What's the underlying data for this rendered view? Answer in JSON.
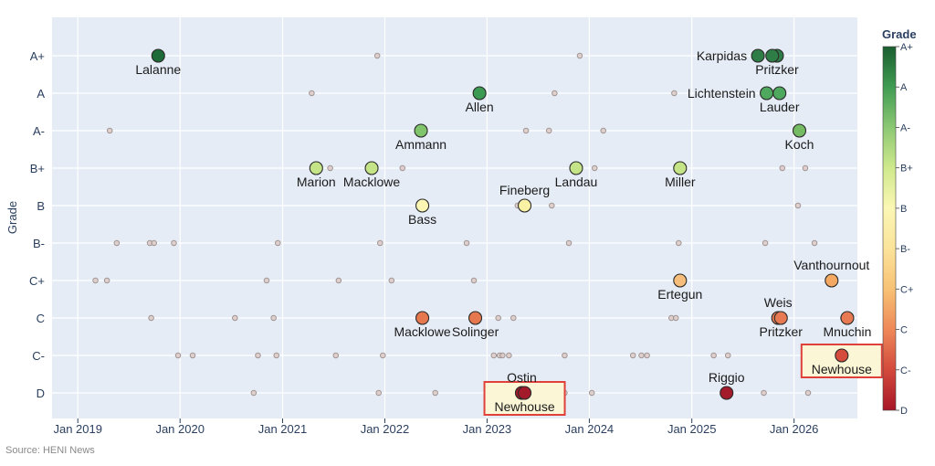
{
  "chart_data": {
    "type": "scatter",
    "source": "Source: HENI News",
    "ylabel": "Grade",
    "xlabel": "",
    "grades": [
      "D",
      "C-",
      "C",
      "C+",
      "B-",
      "B",
      "B+",
      "A-",
      "A",
      "A+"
    ],
    "x_ticks": [
      "Jan 2019",
      "Jan 2020",
      "Jan 2021",
      "Jan 2022",
      "Jan 2023",
      "Jan 2024",
      "Jan 2025",
      "Jan 2026"
    ],
    "x_tick_dates": [
      "2019-01-01",
      "2020-01-01",
      "2021-01-01",
      "2022-01-01",
      "2023-01-01",
      "2024-01-01",
      "2025-01-01",
      "2026-01-01"
    ],
    "xlim": [
      "2018-10-01",
      "2026-08-15"
    ],
    "grid": true,
    "colorbar": {
      "title": "Grade",
      "labels": [
        "A+",
        "A",
        "A-",
        "B+",
        "B",
        "B-",
        "C+",
        "C",
        "C-",
        "D"
      ],
      "colors": [
        "#1a5e30",
        "#3f9c52",
        "#8cc873",
        "#cfe98c",
        "#fbf7b4",
        "#fbe39a",
        "#f8c275",
        "#ee8858",
        "#d34a3c",
        "#a71626"
      ],
      "position": "right"
    },
    "highlighted": [
      {
        "label": "Lalanne",
        "date": "2019-10-15",
        "grade": "A+",
        "color": "#1d6b38",
        "label_pos": "below"
      },
      {
        "label": "Allen",
        "date": "2022-12-05",
        "grade": "A",
        "color": "#3c9a52",
        "label_pos": "below"
      },
      {
        "label": "Ammann",
        "date": "2022-05-10",
        "grade": "A-",
        "color": "#80c46c",
        "label_pos": "below"
      },
      {
        "label": "Marion",
        "date": "2021-05-01",
        "grade": "B+",
        "color": "#c4e487",
        "label_pos": "below"
      },
      {
        "label": "Macklowe",
        "date": "2021-11-15",
        "grade": "B+",
        "color": "#c4e487",
        "label_pos": "below"
      },
      {
        "label": "Bass",
        "date": "2022-05-15",
        "grade": "B",
        "color": "#fbf6b3",
        "label_pos": "below"
      },
      {
        "label": "Fineberg",
        "date": "2023-05-15",
        "grade": "B",
        "color": "#f9f2a4",
        "label_pos": "above"
      },
      {
        "label": "Landau",
        "date": "2023-11-15",
        "grade": "B+",
        "color": "#c4e487",
        "label_pos": "below"
      },
      {
        "label": "Miller",
        "date": "2024-11-20",
        "grade": "B+",
        "color": "#c4e487",
        "label_pos": "below"
      },
      {
        "label": "Macklowe",
        "date": "2022-05-15",
        "grade": "C",
        "color": "#e6784f",
        "label_pos": "below"
      },
      {
        "label": "Solinger",
        "date": "2022-11-20",
        "grade": "C",
        "color": "#e6784f",
        "label_pos": "below"
      },
      {
        "label": "Ostin",
        "date": "2023-05-05",
        "grade": "D",
        "color": "#a31a2a",
        "label_pos": "above"
      },
      {
        "label": "Newhouse",
        "date": "2023-05-15",
        "grade": "D",
        "color": "#a31a2a",
        "label_pos": "below",
        "boxed": true
      },
      {
        "label": "Ertegun",
        "date": "2024-11-20",
        "grade": "C+",
        "color": "#f7be7b",
        "label_pos": "below"
      },
      {
        "label": "Riggio",
        "date": "2025-05-05",
        "grade": "D",
        "color": "#a31a2a",
        "label_pos": "above"
      },
      {
        "label": "Karpidas",
        "date": "2025-08-25",
        "grade": "A+",
        "color": "#2f7d46",
        "label_pos": "left"
      },
      {
        "label": "Pritzker",
        "date": "2025-11-01",
        "grade": "A+",
        "color": "#2f7d46",
        "label_pos": "below"
      },
      {
        "label": "",
        "date": "2025-10-15",
        "grade": "A+",
        "color": "#2f7d46"
      },
      {
        "label": "Lichtenstein",
        "date": "2025-09-25",
        "grade": "A",
        "color": "#4ea85e",
        "label_pos": "left"
      },
      {
        "label": "Lauder",
        "date": "2025-11-10",
        "grade": "A",
        "color": "#4ea85e",
        "label_pos": "below"
      },
      {
        "label": "Koch",
        "date": "2026-01-20",
        "grade": "A-",
        "color": "#75bb64",
        "label_pos": "below"
      },
      {
        "label": "Vanthournout",
        "date": "2026-05-15",
        "grade": "C+",
        "color": "#f4a862",
        "label_pos": "above"
      },
      {
        "label": "Weis",
        "date": "2025-11-05",
        "grade": "C",
        "color": "#e77a52",
        "label_pos": "above"
      },
      {
        "label": "Pritzker",
        "date": "2025-11-15",
        "grade": "C",
        "color": "#e77a52",
        "label_pos": "below"
      },
      {
        "label": "Mnuchin",
        "date": "2026-07-10",
        "grade": "C",
        "color": "#e77a52",
        "label_pos": "below"
      },
      {
        "label": "Newhouse",
        "date": "2026-06-20",
        "grade": "C-",
        "color": "#d54b3c",
        "label_pos": "below",
        "boxed": true
      }
    ],
    "background_points": [
      [
        "2021-12-05",
        "A+"
      ],
      [
        "2023-11-28",
        "A+"
      ],
      [
        "2021-04-15",
        "A"
      ],
      [
        "2023-08-30",
        "A"
      ],
      [
        "2024-10-30",
        "A"
      ],
      [
        "2019-04-25",
        "A-"
      ],
      [
        "2022-05-05",
        "A-"
      ],
      [
        "2023-05-20",
        "A-"
      ],
      [
        "2023-08-10",
        "A-"
      ],
      [
        "2024-02-20",
        "A-"
      ],
      [
        "2021-06-20",
        "B+"
      ],
      [
        "2022-03-05",
        "B+"
      ],
      [
        "2024-01-20",
        "B+"
      ],
      [
        "2025-11-20",
        "B+"
      ],
      [
        "2026-02-10",
        "B+"
      ],
      [
        "2023-04-20",
        "B"
      ],
      [
        "2023-08-20",
        "B"
      ],
      [
        "2026-01-15",
        "B"
      ],
      [
        "2019-05-20",
        "B-"
      ],
      [
        "2019-09-15",
        "B-"
      ],
      [
        "2019-09-30",
        "B-"
      ],
      [
        "2019-12-10",
        "B-"
      ],
      [
        "2020-12-15",
        "B-"
      ],
      [
        "2021-12-15",
        "B-"
      ],
      [
        "2022-10-20",
        "B-"
      ],
      [
        "2023-10-20",
        "B-"
      ],
      [
        "2024-11-15",
        "B-"
      ],
      [
        "2025-09-20",
        "B-"
      ],
      [
        "2026-03-15",
        "B-"
      ],
      [
        "2019-03-05",
        "C+"
      ],
      [
        "2019-04-15",
        "C+"
      ],
      [
        "2020-11-05",
        "C+"
      ],
      [
        "2021-07-20",
        "C+"
      ],
      [
        "2022-01-25",
        "C+"
      ],
      [
        "2022-11-15",
        "C+"
      ],
      [
        "2019-09-20",
        "C"
      ],
      [
        "2020-07-15",
        "C"
      ],
      [
        "2020-11-30",
        "C"
      ],
      [
        "2023-02-10",
        "C"
      ],
      [
        "2023-04-05",
        "C"
      ],
      [
        "2024-10-20",
        "C"
      ],
      [
        "2024-11-05",
        "C"
      ],
      [
        "2026-06-25",
        "C"
      ],
      [
        "2019-12-25",
        "C-"
      ],
      [
        "2020-02-15",
        "C-"
      ],
      [
        "2020-10-05",
        "C-"
      ],
      [
        "2020-12-10",
        "C-"
      ],
      [
        "2021-07-10",
        "C-"
      ],
      [
        "2021-12-25",
        "C-"
      ],
      [
        "2023-01-25",
        "C-"
      ],
      [
        "2023-02-15",
        "C-"
      ],
      [
        "2023-02-25",
        "C-"
      ],
      [
        "2023-03-20",
        "C-"
      ],
      [
        "2023-10-05",
        "C-"
      ],
      [
        "2024-06-05",
        "C-"
      ],
      [
        "2024-07-05",
        "C-"
      ],
      [
        "2024-07-25",
        "C-"
      ],
      [
        "2025-03-20",
        "C-"
      ],
      [
        "2025-05-10",
        "C-"
      ],
      [
        "2020-09-20",
        "D"
      ],
      [
        "2021-12-10",
        "D"
      ],
      [
        "2022-06-30",
        "D"
      ],
      [
        "2023-01-15",
        "D"
      ],
      [
        "2023-10-05",
        "D"
      ],
      [
        "2024-01-10",
        "D"
      ],
      [
        "2025-09-15",
        "D"
      ],
      [
        "2026-02-20",
        "D"
      ]
    ]
  }
}
